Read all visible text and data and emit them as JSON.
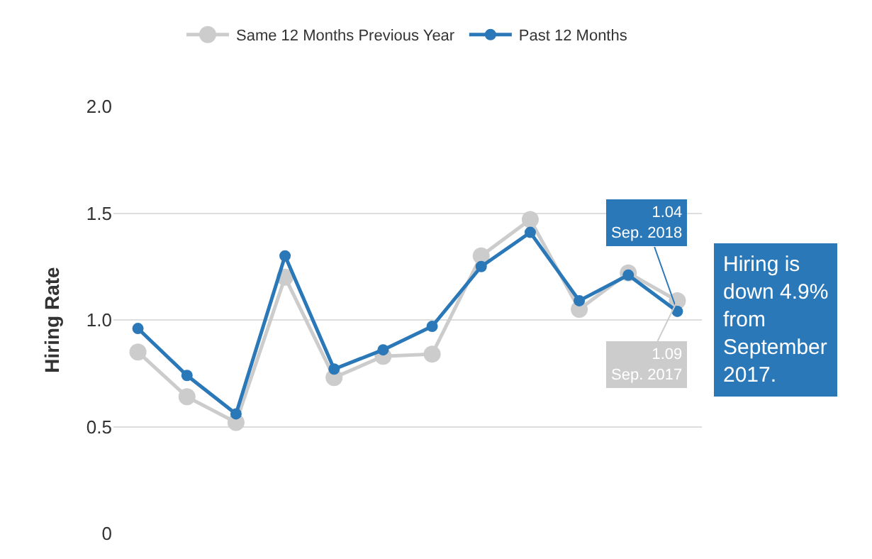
{
  "chart_data": {
    "type": "line",
    "ylabel": "Hiring Rate",
    "categories": [
      null,
      null,
      null,
      null,
      null,
      null,
      null,
      null,
      null,
      null,
      null,
      null
    ],
    "series": [
      {
        "name": "Same 12 Months Previous Year",
        "color": "#cccccc",
        "values": [
          0.85,
          0.64,
          0.52,
          1.2,
          0.73,
          0.83,
          0.84,
          1.3,
          1.47,
          1.05,
          1.22,
          1.09
        ]
      },
      {
        "name": "Past 12 Months",
        "color": "#2a78b8",
        "values": [
          0.96,
          0.74,
          0.56,
          1.3,
          0.77,
          0.86,
          0.97,
          1.25,
          1.41,
          1.09,
          1.21,
          1.04
        ]
      }
    ],
    "ylim": [
      0,
      2.0
    ],
    "yticks": [
      0,
      0.5,
      {
        "value": 1,
        "label": "1.0"
      },
      1.5,
      {
        "value": 2,
        "label": "2.0"
      }
    ],
    "grid": "y",
    "legend": "top",
    "marker": "circle",
    "line_style": "solid",
    "annotations": [
      "1.04\nSep. 2018",
      "1.09\nSep. 2017",
      "Hiring is\ndown 4.9%\nfrom\nSeptember\n2017."
    ]
  }
}
